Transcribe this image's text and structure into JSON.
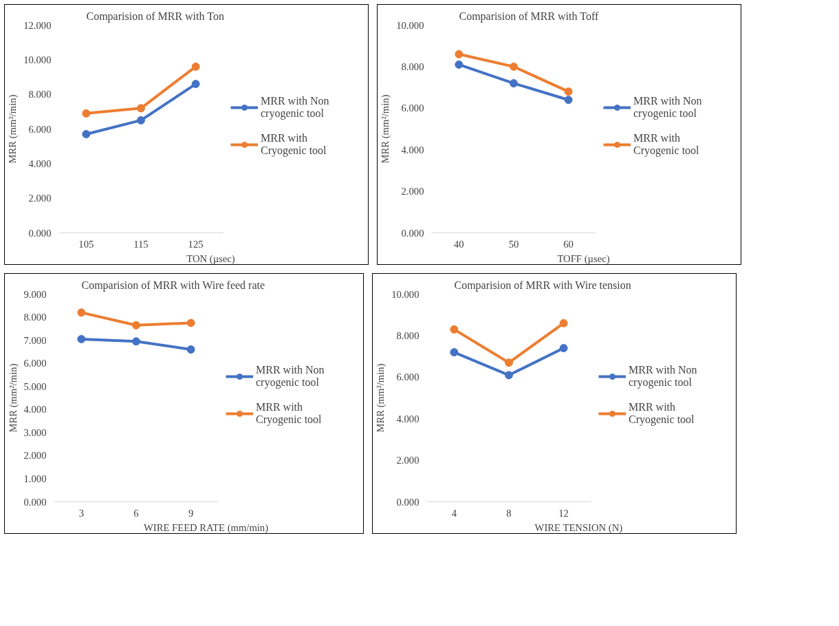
{
  "chart_data": [
    {
      "type": "line",
      "title": "Comparision of MRR with Ton",
      "xlabel": "TON (µsec)",
      "ylabel": "MRR (mm²/min)",
      "categories": [
        "105",
        "115",
        "125"
      ],
      "ylim": [
        0,
        12
      ],
      "yticks": [
        {
          "value": 0,
          "label": "0.000"
        },
        {
          "value": 2,
          "label": "2.000"
        },
        {
          "value": 4,
          "label": "4.000"
        },
        {
          "value": 6,
          "label": "6.000"
        },
        {
          "value": 8,
          "label": "8.000"
        },
        {
          "value": 10,
          "label": "10.000"
        },
        {
          "value": 12,
          "label": "12.000"
        }
      ],
      "grid": false,
      "legend": "right",
      "marker": "circle",
      "series": [
        {
          "name": "MRR with Non cryogenic tool",
          "color": "#4472c4",
          "values": [
            5.7,
            6.5,
            8.6
          ]
        },
        {
          "name": "MRR with Cryogenic tool",
          "color": "#ed7d31",
          "values": [
            6.9,
            7.2,
            9.6
          ]
        }
      ]
    },
    {
      "type": "line",
      "title": "Comparision of MRR with Toff",
      "xlabel": "TOFF (µsec)",
      "ylabel": "MRR (mm²/min)",
      "categories": [
        "40",
        "50",
        "60"
      ],
      "ylim": [
        0,
        10
      ],
      "yticks": [
        {
          "value": 0,
          "label": "0.000"
        },
        {
          "value": 2,
          "label": "2.000"
        },
        {
          "value": 4,
          "label": "4.000"
        },
        {
          "value": 6,
          "label": "6.000"
        },
        {
          "value": 8,
          "label": "8.000"
        },
        {
          "value": 10,
          "label": "10.000"
        }
      ],
      "grid": false,
      "legend": "right",
      "marker": "circle",
      "series": [
        {
          "name": "MRR with Non cryogenic tool",
          "color": "#4472c4",
          "values": [
            8.1,
            7.2,
            6.4
          ]
        },
        {
          "name": "MRR with Cryogenic tool",
          "color": "#ed7d31",
          "values": [
            8.6,
            8.0,
            6.8
          ]
        }
      ]
    },
    {
      "type": "line",
      "title": "Comparision of MRR with Wire feed rate",
      "xlabel": "WIRE FEED RATE (mm/min)",
      "ylabel": "MRR (mm²/min)",
      "categories": [
        "3",
        "6",
        "9"
      ],
      "ylim": [
        0,
        9
      ],
      "yticks": [
        {
          "value": 0,
          "label": "0.000"
        },
        {
          "value": 1,
          "label": "1.000"
        },
        {
          "value": 2,
          "label": "2.000"
        },
        {
          "value": 3,
          "label": "3.000"
        },
        {
          "value": 4,
          "label": "4.000"
        },
        {
          "value": 5,
          "label": "5.000"
        },
        {
          "value": 6,
          "label": "6.000"
        },
        {
          "value": 7,
          "label": "7.000"
        },
        {
          "value": 8,
          "label": "8.000"
        },
        {
          "value": 9,
          "label": "9.000"
        }
      ],
      "grid": false,
      "legend": "right",
      "marker": "circle",
      "series": [
        {
          "name": "MRR with Non cryogenic tool",
          "color": "#4472c4",
          "values": [
            7.05,
            6.95,
            6.6
          ]
        },
        {
          "name": "MRR with Cryogenic tool",
          "color": "#ed7d31",
          "values": [
            8.2,
            7.65,
            7.75
          ]
        }
      ]
    },
    {
      "type": "line",
      "title": "Comparision of MRR with Wire tension",
      "xlabel": "WIRE TENSION (N)",
      "ylabel": "MRR (mm²/min)",
      "categories": [
        "4",
        "8",
        "12"
      ],
      "ylim": [
        0,
        10
      ],
      "yticks": [
        {
          "value": 0,
          "label": "0.000"
        },
        {
          "value": 2,
          "label": "2.000"
        },
        {
          "value": 4,
          "label": "4.000"
        },
        {
          "value": 6,
          "label": "6.000"
        },
        {
          "value": 8,
          "label": "8.000"
        },
        {
          "value": 10,
          "label": "10.000"
        }
      ],
      "grid": false,
      "legend": "right",
      "marker": "circle",
      "series": [
        {
          "name": "MRR with Non cryogenic tool",
          "color": "#4472c4",
          "values": [
            7.2,
            6.1,
            7.4
          ]
        },
        {
          "name": "MRR with Cryogenic tool",
          "color": "#ed7d31",
          "values": [
            8.3,
            6.7,
            8.6
          ]
        }
      ]
    }
  ]
}
